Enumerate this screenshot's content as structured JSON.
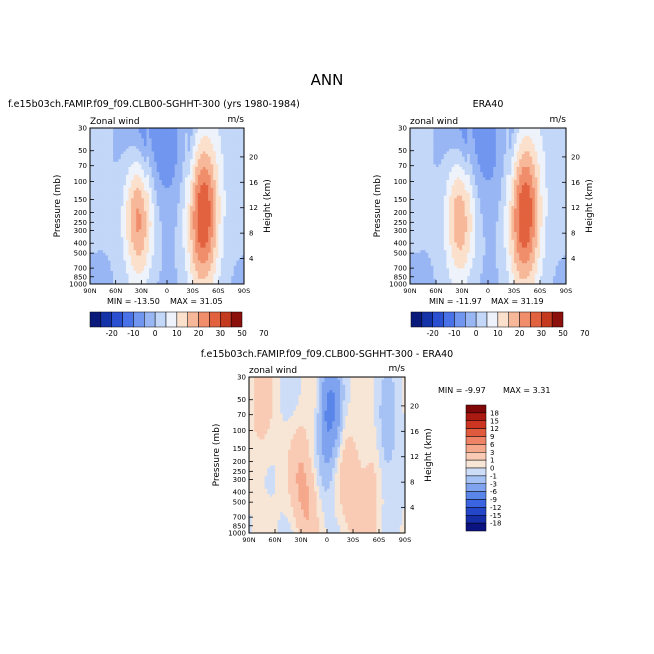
{
  "figure": {
    "title": "ANN"
  },
  "colors": {
    "model_obs_scale": [
      "#0a1a7a",
      "#1533a8",
      "#2a4fd0",
      "#4a72e8",
      "#7096f0",
      "#99b6f4",
      "#c3d7f8",
      "#eef3fb",
      "#fbe0cc",
      "#f7b89a",
      "#f08e6c",
      "#e2623f",
      "#c33a1e",
      "#8b0f0a"
    ],
    "diff_scale": [
      "#0b1380",
      "#152ea8",
      "#2347c8",
      "#3a64e0",
      "#5a86ea",
      "#7fa3ef",
      "#a6c1f3",
      "#cddcf7",
      "#f7e6d6",
      "#f9cbb4",
      "#f5a88c",
      "#ee8366",
      "#e05a3e",
      "#cc3522",
      "#ab1a10",
      "#7f0707"
    ]
  },
  "chart_data": [
    {
      "type": "heatmap",
      "panel": "model",
      "title": "f.e15b03ch.FAMIP.f09_f09.CLB00-SGHHT-300 (yrs 1980-1984)",
      "subtitle_left": "Zonal wind",
      "subtitle_right": "m/s",
      "xlabel": "",
      "ylabel": "Pressure (mb)",
      "ylabel_right": "Height (km)",
      "x_ticks": [
        "90N",
        "60N",
        "30N",
        "0",
        "30S",
        "60S",
        "90S"
      ],
      "y_ticks": [
        "30",
        "50",
        "70",
        "100",
        "150",
        "200",
        "250",
        "300",
        "400",
        "500",
        "700",
        "850",
        "1000"
      ],
      "y_ticks_right": [
        "20",
        "16",
        "12",
        "8",
        "4"
      ],
      "ylim": [
        1000,
        30
      ],
      "y_scale": "log",
      "min_label": "MIN = -13.50",
      "max_label": "MAX =  31.05",
      "colorbar_ticks": [
        "-20",
        "-10",
        "0",
        "10",
        "20",
        "30",
        "50",
        "70"
      ],
      "colorbar_levels": [
        -25,
        -20,
        -15,
        -10,
        -5,
        0,
        5,
        10,
        15,
        20,
        25,
        30,
        40,
        50,
        60,
        70
      ],
      "jets": [
        {
          "lat": 33,
          "pressure": 200,
          "value": 24,
          "spread_lat": 12,
          "spread_logp": 0.45
        },
        {
          "lat": -42,
          "pressure": 200,
          "value": 31,
          "spread_lat": 13,
          "spread_logp": 0.55
        },
        {
          "lat": 8,
          "pressure": 40,
          "value": -13,
          "spread_lat": 28,
          "spread_logp": 0.5
        }
      ]
    },
    {
      "type": "heatmap",
      "panel": "obs",
      "title": "ERA40",
      "subtitle_left": "zonal wind",
      "subtitle_right": "m/s",
      "xlabel": "",
      "ylabel": "Pressure (mb)",
      "ylabel_right": "Height (km)",
      "x_ticks": [
        "90N",
        "60N",
        "30N",
        "0",
        "30S",
        "60S",
        "90S"
      ],
      "y_ticks": [
        "30",
        "50",
        "70",
        "100",
        "150",
        "200",
        "250",
        "300",
        "400",
        "500",
        "700",
        "850",
        "1000"
      ],
      "y_ticks_right": [
        "20",
        "16",
        "12",
        "8",
        "4"
      ],
      "ylim": [
        1000,
        30
      ],
      "y_scale": "log",
      "min_label": "MIN = -11.97",
      "max_label": "MAX =  31.19",
      "colorbar_ticks": [
        "-20",
        "-10",
        "0",
        "10",
        "20",
        "30",
        "50",
        "70"
      ],
      "colorbar_levels": [
        -25,
        -20,
        -15,
        -10,
        -5,
        0,
        5,
        10,
        15,
        20,
        25,
        30,
        40,
        50,
        60,
        70
      ],
      "jets": [
        {
          "lat": 32,
          "pressure": 200,
          "value": 22,
          "spread_lat": 12,
          "spread_logp": 0.45
        },
        {
          "lat": -42,
          "pressure": 200,
          "value": 31,
          "spread_lat": 13,
          "spread_logp": 0.55
        },
        {
          "lat": 8,
          "pressure": 40,
          "value": -12,
          "spread_lat": 28,
          "spread_logp": 0.5
        }
      ]
    },
    {
      "type": "heatmap",
      "panel": "diff",
      "title": "f.e15b03ch.FAMIP.f09_f09.CLB00-SGHHT-300 - ERA40",
      "subtitle_left": "zonal wind",
      "subtitle_right": "m/s",
      "xlabel": "",
      "ylabel": "Pressure (mb)",
      "ylabel_right": "Height (km)",
      "x_ticks": [
        "90N",
        "60N",
        "30N",
        "0",
        "30S",
        "60S",
        "90S"
      ],
      "y_ticks": [
        "30",
        "50",
        "70",
        "100",
        "150",
        "200",
        "250",
        "300",
        "400",
        "500",
        "700",
        "850",
        "1000"
      ],
      "y_ticks_right": [
        "20",
        "16",
        "12",
        "8",
        "4"
      ],
      "ylim": [
        1000,
        30
      ],
      "y_scale": "log",
      "min_label": "MIN =  -9.97",
      "max_label": "MAX =   3.31",
      "colorbar_ticks": [
        "18",
        "15",
        "12",
        "9",
        "6",
        "3",
        "1",
        "0",
        "-1",
        "-3",
        "-6",
        "-9",
        "-12",
        "-15",
        "-18"
      ],
      "colorbar_levels": [
        -18,
        -15,
        -12,
        -9,
        -6,
        -3,
        -1,
        0,
        1,
        3,
        6,
        9,
        12,
        15,
        18
      ],
      "features": [
        {
          "lat": 30,
          "pressure": 300,
          "value": 3,
          "spread_lat": 8,
          "spread_logp": 0.35
        },
        {
          "lat": 20,
          "pressure": 600,
          "value": 2,
          "spread_lat": 7,
          "spread_logp": 0.3
        },
        {
          "lat": -28,
          "pressure": 350,
          "value": 2.5,
          "spread_lat": 9,
          "spread_logp": 0.35
        },
        {
          "lat": -50,
          "pressure": 450,
          "value": 2,
          "spread_lat": 8,
          "spread_logp": 0.4
        },
        {
          "lat": 0,
          "pressure": 70,
          "value": -6,
          "spread_lat": 6,
          "spread_logp": 0.4
        },
        {
          "lat": 75,
          "pressure": 60,
          "value": 1.5,
          "spread_lat": 10,
          "spread_logp": 0.5
        },
        {
          "lat": -10,
          "pressure": 60,
          "value": -4,
          "spread_lat": 5,
          "spread_logp": 0.3
        },
        {
          "lat": -70,
          "pressure": 120,
          "value": -2,
          "spread_lat": 8,
          "spread_logp": 0.4
        }
      ]
    }
  ]
}
